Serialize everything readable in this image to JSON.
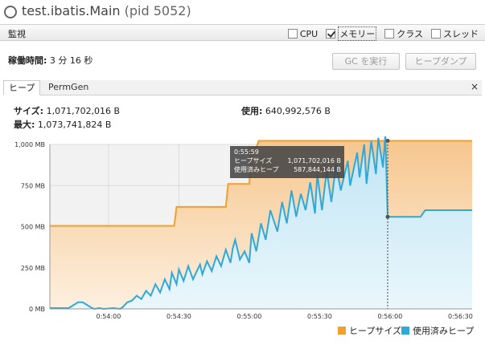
{
  "window": {
    "title": "test.ibatis.Main",
    "pid": "(pid 5052)"
  },
  "section": {
    "label": "監視",
    "checkboxes": [
      {
        "label": "CPU",
        "checked": false
      },
      {
        "label": "メモリー",
        "checked": true
      },
      {
        "label": "クラス",
        "checked": false
      },
      {
        "label": "スレッド",
        "checked": false
      }
    ]
  },
  "uptime": {
    "label": "稼働時間:",
    "value": "3 分 16 秒"
  },
  "buttons": {
    "gc": "GC を実行",
    "heap_dump": "ヒープダンプ"
  },
  "tabs": {
    "heap": "ヒープ",
    "permgen": "PermGen",
    "close": "×"
  },
  "stats": {
    "size_label": "サイズ:",
    "size_value": "1,071,702,016 B",
    "max_label": "最大:",
    "max_value": "1,073,741,824 B",
    "used_label": "使用:",
    "used_value": "640,992,576 B"
  },
  "tooltip": {
    "time": "0:55:59",
    "size_label": "ヒープサイズ",
    "size_value": "1,071,702,016 B",
    "used_label": "使用済みヒープ",
    "used_value": "587,844,144 B"
  },
  "colors": {
    "heap_size": "#f0a030",
    "used_heap": "#30a8d8"
  },
  "chart_data": {
    "type": "area",
    "ylim": [
      0,
      1000
    ],
    "xlim": [
      215,
      395
    ],
    "yticks": [
      "0 MB",
      "250 MB",
      "500 MB",
      "750 MB",
      "1,000 MB"
    ],
    "ytick_values": [
      0,
      250,
      500,
      750,
      1000
    ],
    "xticks": [
      "0:54:00",
      "0:54:30",
      "0:55:00",
      "0:55:30",
      "0:56:00",
      "0:56:30"
    ],
    "xtick_values": [
      240,
      270,
      300,
      330,
      360,
      390
    ],
    "cursor_x": 359,
    "series": [
      {
        "name": "ヒープサイズ",
        "x": [
          215,
          268,
          269,
          290,
          291,
          300,
          301,
          303,
          304,
          395
        ],
        "values": [
          505,
          505,
          620,
          620,
          760,
          760,
          980,
          980,
          1022,
          1022
        ]
      },
      {
        "name": "使用済みヒープ",
        "x": [
          215,
          216,
          223,
          227,
          229,
          233,
          234,
          236,
          238,
          242,
          245,
          246,
          248,
          250,
          252,
          254,
          256,
          258,
          260,
          262,
          264,
          266,
          267,
          269,
          270,
          272,
          274,
          276,
          279,
          280,
          282,
          284,
          286,
          288,
          290,
          292,
          293,
          294,
          296,
          298,
          300,
          301,
          303,
          305,
          307,
          309,
          312,
          314,
          316,
          318,
          320,
          322,
          324,
          326,
          328,
          329,
          331,
          333,
          335,
          337,
          339,
          342,
          343,
          346,
          347,
          349,
          350,
          352,
          354,
          355,
          357,
          358,
          359,
          373,
          375,
          395
        ],
        "values": [
          5,
          5,
          5,
          40,
          40,
          5,
          0,
          5,
          0,
          5,
          0,
          10,
          40,
          50,
          80,
          60,
          110,
          80,
          150,
          100,
          180,
          120,
          220,
          150,
          240,
          170,
          260,
          180,
          270,
          210,
          290,
          230,
          320,
          260,
          360,
          280,
          370,
          420,
          300,
          350,
          280,
          460,
          350,
          520,
          420,
          600,
          470,
          650,
          520,
          720,
          560,
          700,
          600,
          770,
          580,
          820,
          600,
          840,
          650,
          880,
          720,
          900,
          750,
          950,
          800,
          1000,
          760,
          1020,
          820,
          1040,
          860,
          1060,
          560,
          560,
          600,
          600
        ]
      }
    ]
  }
}
